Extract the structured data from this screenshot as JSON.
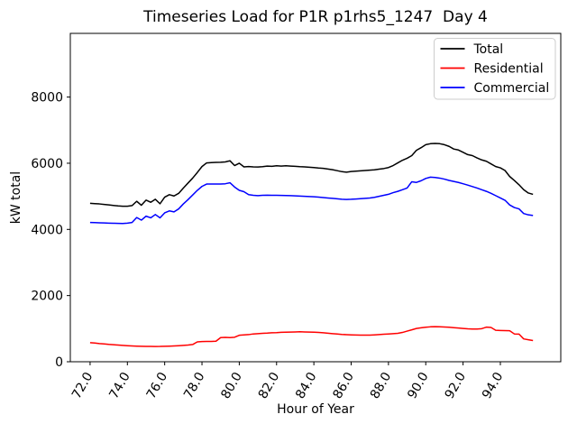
{
  "figure": {
    "title": "Timeseries Load for P1R p1rhs5_1247  Day 4",
    "xlabel": "Hour of Year",
    "ylabel": "kW total"
  },
  "chart_data": {
    "type": "line",
    "title": "Timeseries Load for P1R p1rhs5_1247  Day 4",
    "xlabel": "Hour of Year",
    "ylabel": "kW total",
    "grid": false,
    "legend_position": "upper right",
    "legend_entries": [
      "Total",
      "Residential",
      "Commercial"
    ],
    "xlim": [
      70.94,
      97.24
    ],
    "ylim": [
      0,
      9925
    ],
    "x_ticks": [
      72,
      74,
      76,
      78,
      80,
      82,
      84,
      86,
      88,
      90,
      92,
      94
    ],
    "x_tick_labels": [
      "72.0",
      "74.0",
      "76.0",
      "78.0",
      "80.0",
      "82.0",
      "84.0",
      "86.0",
      "88.0",
      "90.0",
      "92.0",
      "94.0"
    ],
    "x_tick_rotation": 60,
    "y_ticks": [
      0,
      2000,
      4000,
      6000,
      8000
    ],
    "y_tick_labels": [
      "0",
      "2000",
      "4000",
      "6000",
      "8000"
    ],
    "x_start": 72.0,
    "x_step": 0.25,
    "series": [
      {
        "name": "Total",
        "color": "#000000",
        "values": [
          4790,
          4780,
          4770,
          4755,
          4740,
          4725,
          4710,
          4700,
          4700,
          4720,
          4850,
          4730,
          4885,
          4820,
          4910,
          4775,
          4975,
          5050,
          5010,
          5090,
          5250,
          5400,
          5550,
          5720,
          5900,
          6010,
          6020,
          6025,
          6030,
          6040,
          6075,
          5930,
          6000,
          5890,
          5900,
          5890,
          5885,
          5895,
          5915,
          5905,
          5925,
          5915,
          5925,
          5915,
          5905,
          5895,
          5890,
          5880,
          5870,
          5855,
          5845,
          5825,
          5805,
          5775,
          5745,
          5730,
          5750,
          5760,
          5770,
          5780,
          5790,
          5800,
          5820,
          5840,
          5870,
          5930,
          6010,
          6090,
          6150,
          6230,
          6390,
          6470,
          6560,
          6590,
          6600,
          6590,
          6560,
          6510,
          6430,
          6400,
          6330,
          6260,
          6230,
          6160,
          6100,
          6060,
          5980,
          5900,
          5860,
          5780,
          5600,
          5480,
          5350,
          5200,
          5100,
          5060
        ]
      },
      {
        "name": "Residential",
        "color": "#ff0000",
        "values": [
          575,
          565,
          550,
          540,
          525,
          515,
          505,
          495,
          485,
          478,
          472,
          468,
          465,
          462,
          460,
          462,
          468,
          472,
          478,
          485,
          495,
          505,
          520,
          600,
          610,
          615,
          615,
          620,
          730,
          735,
          730,
          740,
          800,
          810,
          820,
          840,
          850,
          860,
          865,
          875,
          880,
          888,
          893,
          898,
          900,
          905,
          900,
          897,
          893,
          885,
          875,
          862,
          850,
          838,
          826,
          818,
          812,
          808,
          805,
          803,
          805,
          812,
          822,
          832,
          840,
          848,
          858,
          885,
          925,
          965,
          1005,
          1025,
          1042,
          1055,
          1060,
          1055,
          1050,
          1042,
          1030,
          1018,
          1005,
          995,
          990,
          988,
          1000,
          1045,
          1035,
          950,
          945,
          942,
          938,
          840,
          835,
          690,
          665,
          640
        ]
      },
      {
        "name": "Commercial",
        "color": "#0000ff",
        "values": [
          4210,
          4205,
          4200,
          4195,
          4190,
          4185,
          4182,
          4180,
          4190,
          4210,
          4360,
          4280,
          4400,
          4350,
          4450,
          4350,
          4500,
          4560,
          4530,
          4620,
          4770,
          4900,
          5040,
          5180,
          5300,
          5370,
          5370,
          5370,
          5370,
          5380,
          5410,
          5280,
          5180,
          5140,
          5050,
          5030,
          5020,
          5030,
          5035,
          5030,
          5030,
          5028,
          5025,
          5020,
          5015,
          5008,
          5000,
          4993,
          4985,
          4975,
          4963,
          4950,
          4938,
          4925,
          4912,
          4905,
          4910,
          4918,
          4928,
          4938,
          4950,
          4970,
          5000,
          5030,
          5060,
          5110,
          5150,
          5200,
          5250,
          5440,
          5420,
          5470,
          5540,
          5580,
          5570,
          5550,
          5520,
          5480,
          5450,
          5420,
          5380,
          5340,
          5295,
          5250,
          5200,
          5150,
          5090,
          5020,
          4950,
          4880,
          4740,
          4660,
          4620,
          4480,
          4440,
          4420
        ]
      }
    ]
  }
}
